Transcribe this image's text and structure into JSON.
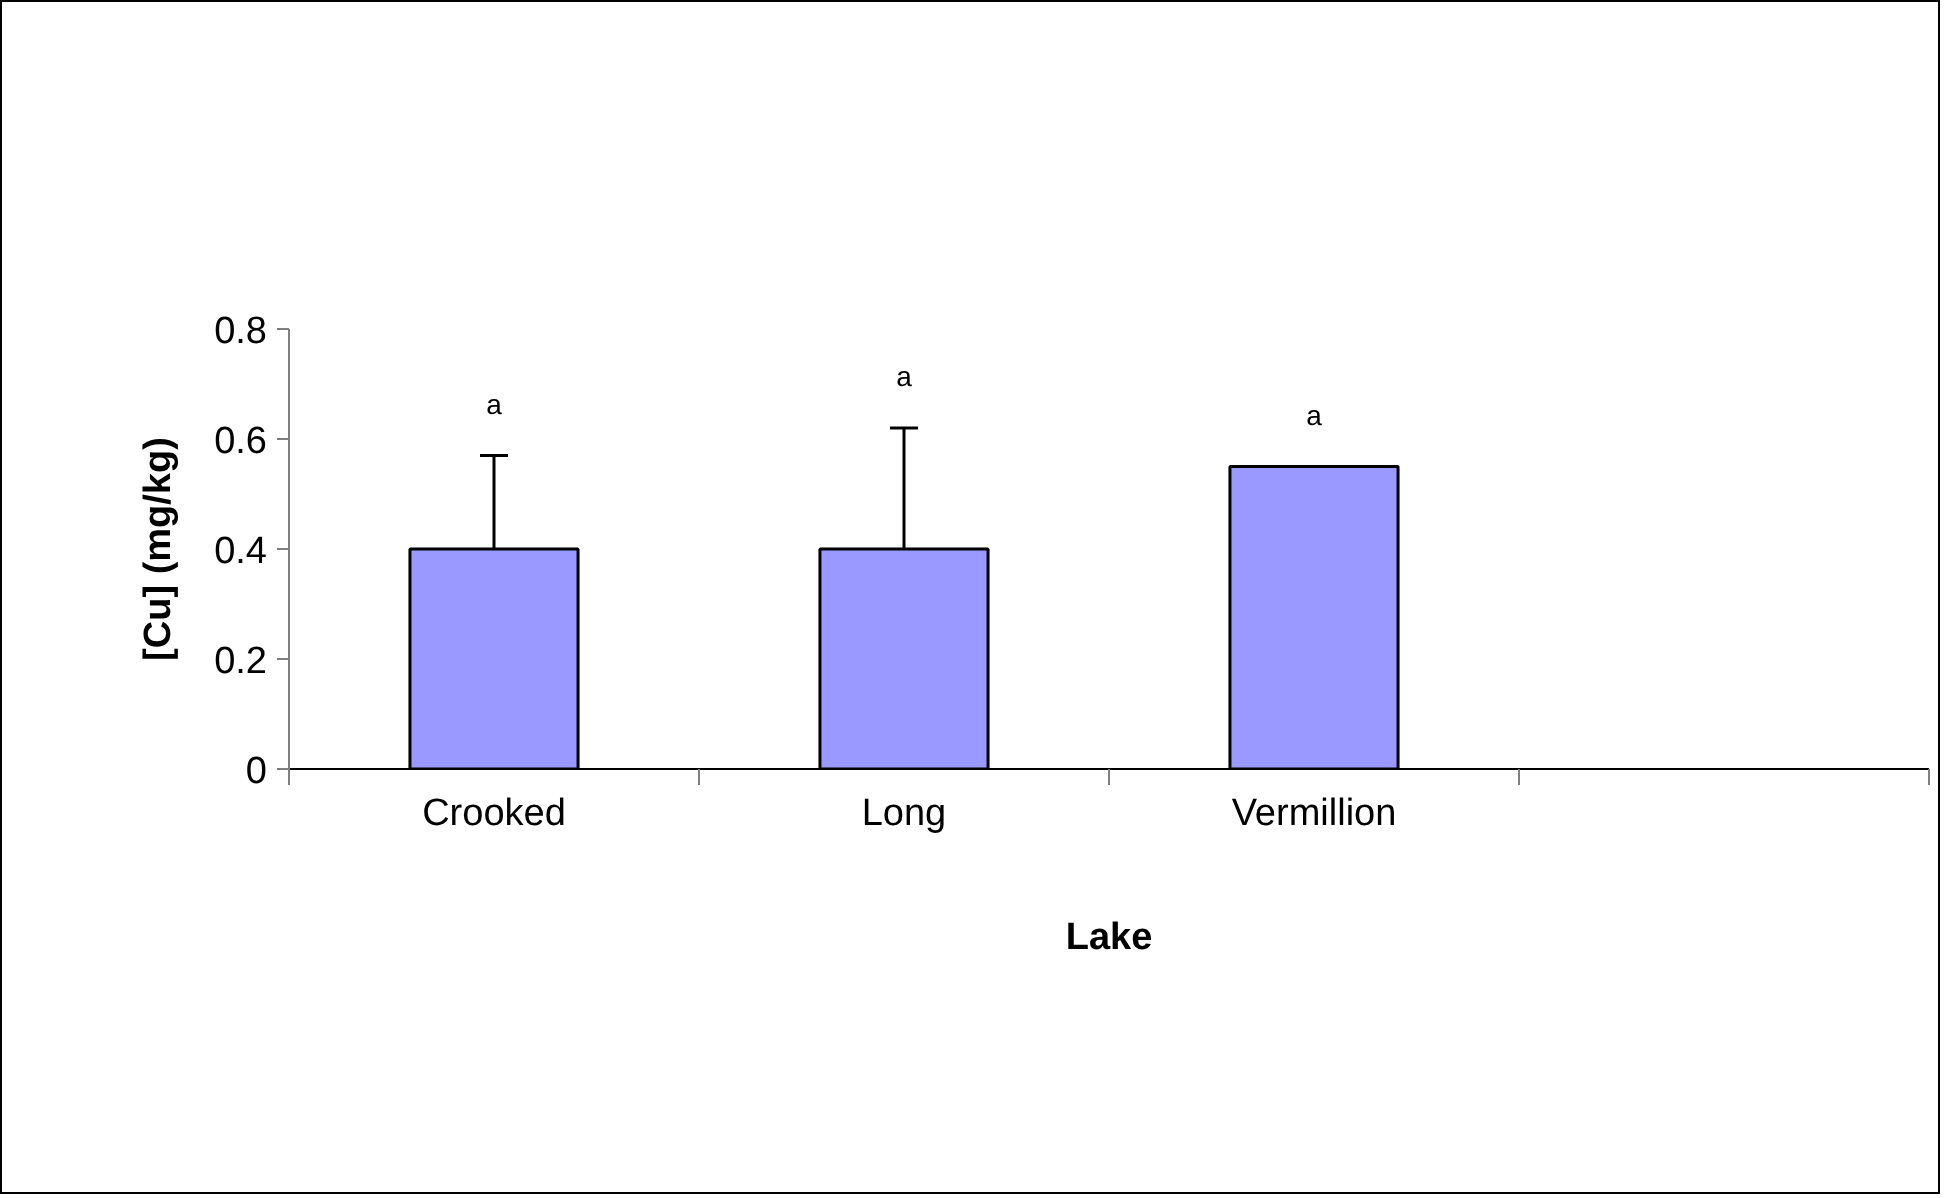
{
  "chart_data": {
    "type": "bar",
    "xlabel": "Lake",
    "ylabel": "[Cu] (mg/kg)",
    "categories": [
      "Crooked",
      "Long",
      "Vermillion",
      null
    ],
    "values": [
      0.4,
      0.4,
      0.55,
      null
    ],
    "color": "#9999ff",
    "errors": [
      [
        0.4,
        0.57
      ],
      [
        0.4,
        0.62
      ],
      null,
      null
    ],
    "ylim": [
      0,
      0.8
    ],
    "yticks": [
      0,
      0.2,
      0.4,
      0.6,
      0.8
    ],
    "grid": false,
    "annotations": [
      "a",
      "a",
      "a"
    ]
  }
}
